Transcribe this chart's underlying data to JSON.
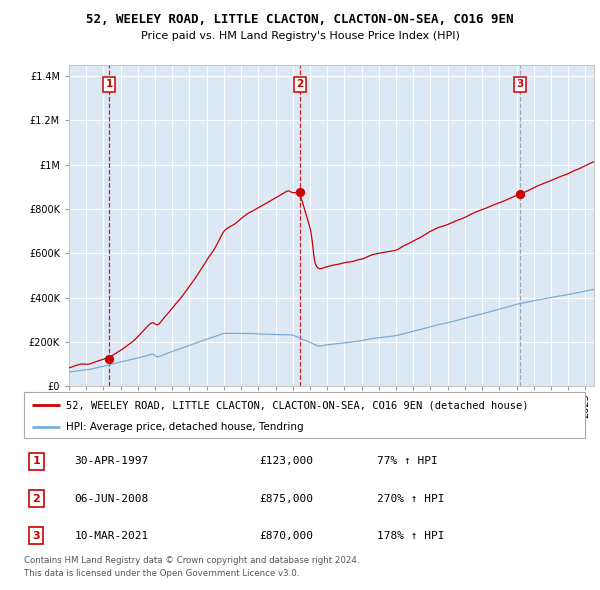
{
  "title": "52, WEELEY ROAD, LITTLE CLACTON, CLACTON-ON-SEA, CO16 9EN",
  "subtitle": "Price paid vs. HM Land Registry's House Price Index (HPI)",
  "legend_red": "52, WEELEY ROAD, LITTLE CLACTON, CLACTON-ON-SEA, CO16 9EN (detached house)",
  "legend_blue": "HPI: Average price, detached house, Tendring",
  "transactions": [
    {
      "num": 1,
      "date_label": "30-APR-1997",
      "year": 1997.33,
      "price": 123000,
      "pct": "77%",
      "dir": "↑"
    },
    {
      "num": 2,
      "date_label": "06-JUN-2008",
      "year": 2008.42,
      "price": 875000,
      "pct": "270%",
      "dir": "↑"
    },
    {
      "num": 3,
      "date_label": "10-MAR-2021",
      "year": 2021.19,
      "price": 870000,
      "pct": "178%",
      "dir": "↑"
    }
  ],
  "footer1": "Contains HM Land Registry data © Crown copyright and database right 2024.",
  "footer2": "This data is licensed under the Open Government Licence v3.0.",
  "ylim": [
    0,
    1450000
  ],
  "xlim_start": 1995.0,
  "xlim_end": 2025.5,
  "plot_bg": "#dce9f5",
  "red_color": "#cc0000",
  "blue_color": "#7aadd4",
  "grid_color": "#ffffff",
  "vline_color_red": "#cc0000",
  "vline_color_grey": "#999999",
  "badge_colors": [
    "#cc0000",
    "#cc0000",
    "#cc0000"
  ]
}
